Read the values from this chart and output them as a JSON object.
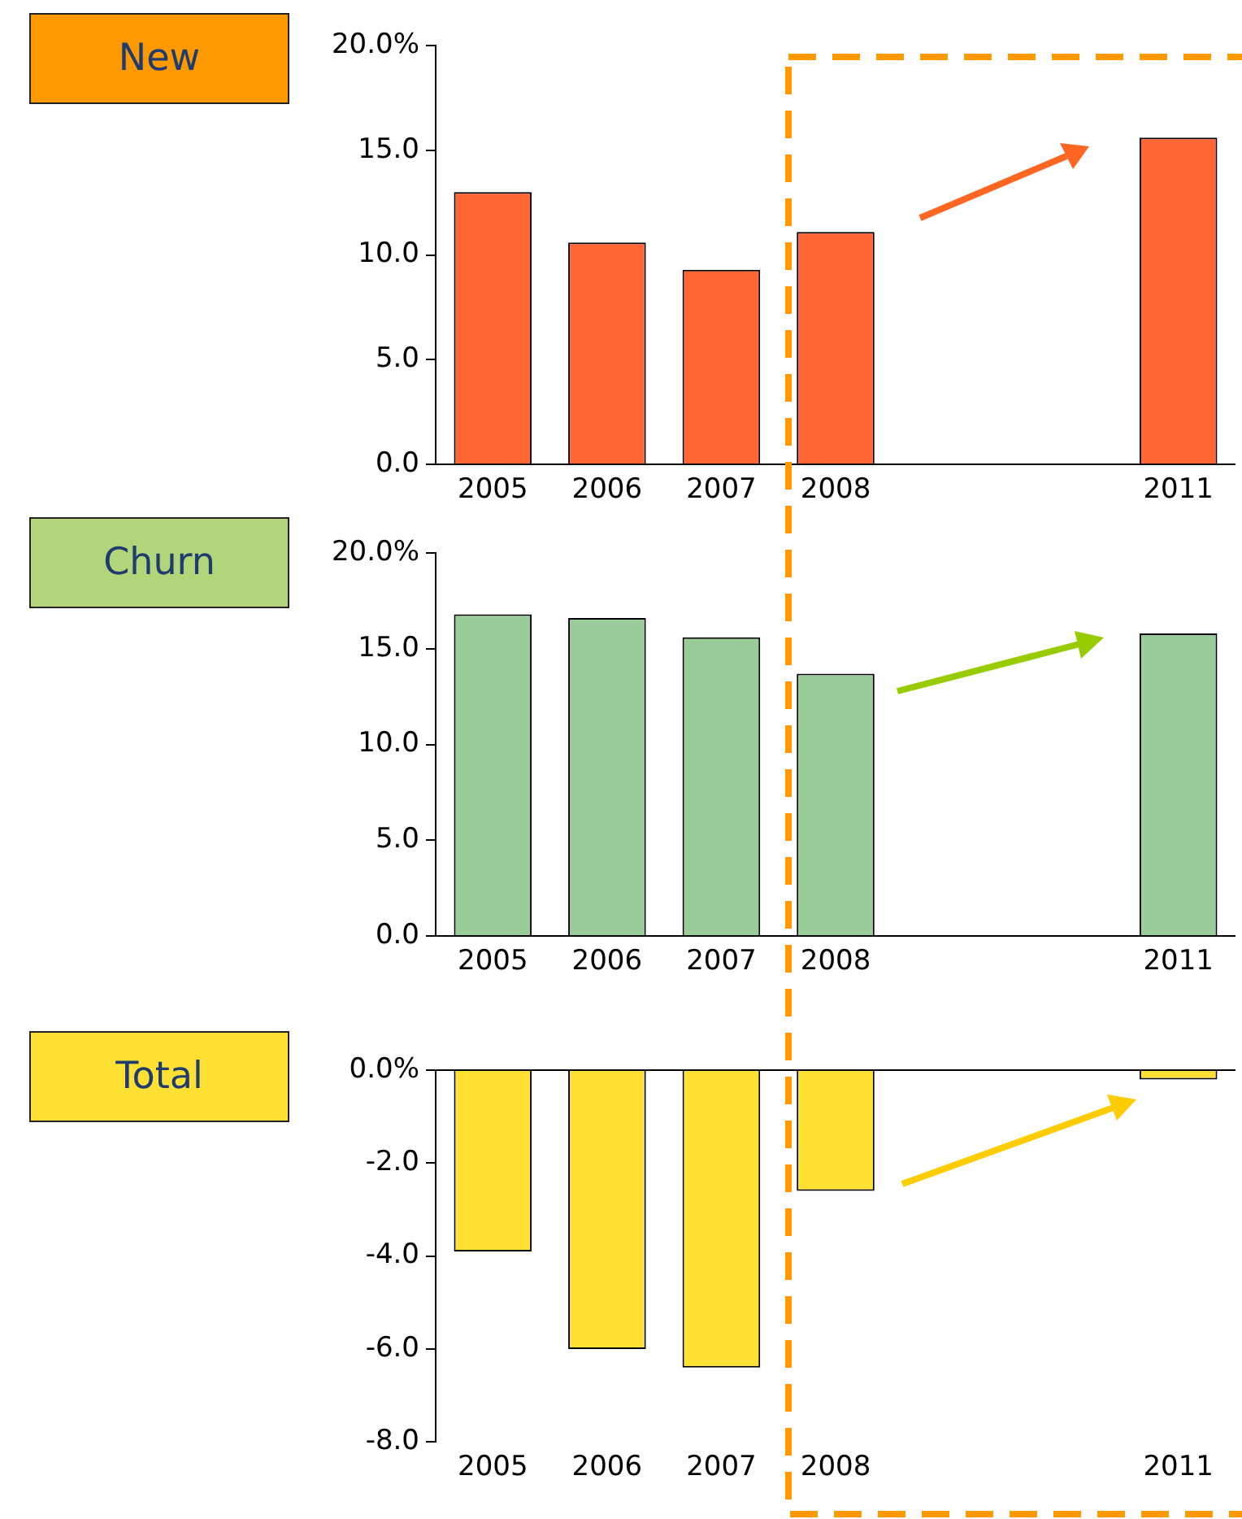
{
  "chart_data": [
    {
      "type": "bar",
      "title": "New",
      "categories": [
        "2005",
        "2006",
        "2007",
        "2008",
        null,
        null,
        "2011"
      ],
      "values": [
        13.0,
        10.6,
        9.3,
        11.1,
        null,
        null,
        15.6
      ],
      "color": "#ff6633",
      "ylim": [
        0,
        20
      ],
      "yticks": [
        {
          "value": 0,
          "label": "0.0"
        },
        {
          "value": 5,
          "label": "5.0"
        },
        {
          "value": 10,
          "label": "10.0"
        },
        {
          "value": 15,
          "label": "15.0"
        },
        {
          "value": 20,
          "label": "20.0%"
        }
      ],
      "grid": false,
      "legend": false
    },
    {
      "type": "bar",
      "title": "Churn",
      "categories": [
        "2005",
        "2006",
        "2007",
        "2008",
        null,
        null,
        "2011"
      ],
      "values": [
        16.8,
        16.6,
        15.6,
        13.7,
        null,
        null,
        15.8
      ],
      "color": "#99cc99",
      "ylim": [
        0,
        20
      ],
      "yticks": [
        {
          "value": 0,
          "label": "0.0"
        },
        {
          "value": 5,
          "label": "5.0"
        },
        {
          "value": 10,
          "label": "10.0"
        },
        {
          "value": 15,
          "label": "15.0"
        },
        {
          "value": 20,
          "label": "20.0%"
        }
      ],
      "grid": false,
      "legend": false
    },
    {
      "type": "bar",
      "title": "Total",
      "categories": [
        "2005",
        "2006",
        "2007",
        "2008",
        null,
        null,
        "2011"
      ],
      "values": [
        -3.9,
        -6.0,
        -6.4,
        -2.6,
        null,
        null,
        -0.2
      ],
      "color": "#ffe033",
      "ylim": [
        -8,
        0
      ],
      "yticks": [
        {
          "value": -8,
          "label": "-8.0"
        },
        {
          "value": -6,
          "label": "-6.0"
        },
        {
          "value": -4,
          "label": "-4.0"
        },
        {
          "value": -2,
          "label": "-2.0"
        },
        {
          "value": 0,
          "label": "0.0%"
        }
      ],
      "grid": false,
      "legend": false
    }
  ]
}
